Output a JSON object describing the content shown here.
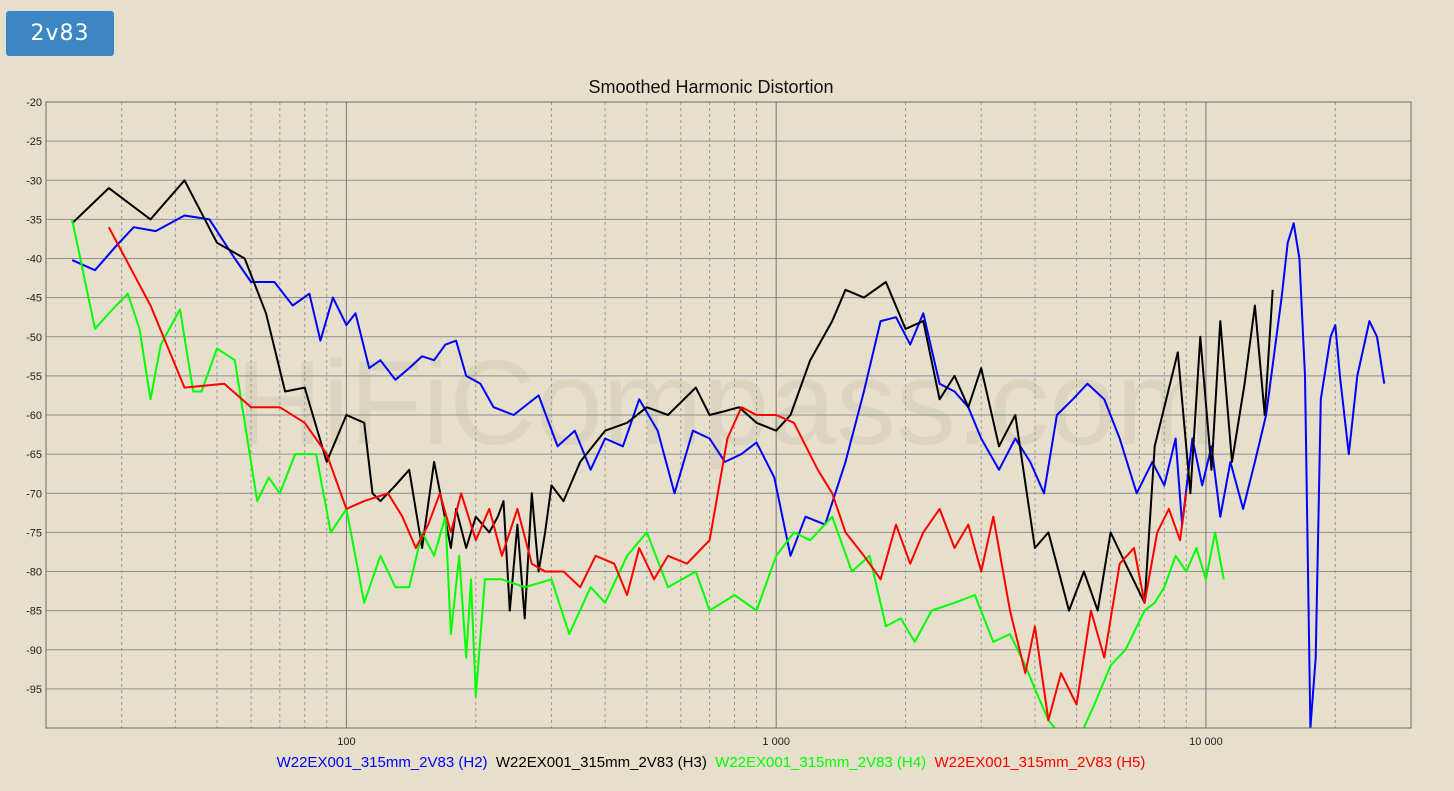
{
  "badge": {
    "label": "2v83"
  },
  "watermark": "HiFiCompass.com",
  "chart_data": {
    "type": "line",
    "title": "Smoothed Harmonic Distortion",
    "xscale": "log",
    "xlim": [
      20,
      30000
    ],
    "ylim": [
      -100,
      -20
    ],
    "grid": true,
    "legend_placement": "bottom",
    "y_ticks": [
      -20,
      -25,
      -30,
      -35,
      -40,
      -45,
      -50,
      -55,
      -60,
      -65,
      -70,
      -75,
      -80,
      -85,
      -90,
      -95
    ],
    "x_tick_labels": [
      {
        "value": 100,
        "label": "100"
      },
      {
        "value": 1000,
        "label": "1 000"
      },
      {
        "value": 10000,
        "label": "10 000"
      }
    ],
    "series": [
      {
        "name": "W22EX001_315mm_2V83 (H2)",
        "color": "#0000ff",
        "points": [
          [
            23,
            -40.2
          ],
          [
            26,
            -41.5
          ],
          [
            29,
            -38.5
          ],
          [
            32,
            -36
          ],
          [
            36,
            -36.5
          ],
          [
            42,
            -34.5
          ],
          [
            48,
            -35
          ],
          [
            55,
            -40
          ],
          [
            60,
            -43
          ],
          [
            68,
            -43
          ],
          [
            75,
            -46
          ],
          [
            82,
            -44.5
          ],
          [
            87,
            -50.5
          ],
          [
            93,
            -45
          ],
          [
            100,
            -48.5
          ],
          [
            105,
            -47
          ],
          [
            113,
            -54
          ],
          [
            120,
            -53
          ],
          [
            130,
            -55.5
          ],
          [
            140,
            -54
          ],
          [
            150,
            -52.5
          ],
          [
            160,
            -53
          ],
          [
            170,
            -51
          ],
          [
            180,
            -50.5
          ],
          [
            190,
            -55
          ],
          [
            205,
            -56
          ],
          [
            220,
            -59
          ],
          [
            245,
            -60
          ],
          [
            280,
            -57.5
          ],
          [
            310,
            -64
          ],
          [
            340,
            -62
          ],
          [
            370,
            -67
          ],
          [
            400,
            -63
          ],
          [
            440,
            -64
          ],
          [
            480,
            -58
          ],
          [
            530,
            -62
          ],
          [
            580,
            -70
          ],
          [
            640,
            -62
          ],
          [
            700,
            -63
          ],
          [
            760,
            -66
          ],
          [
            830,
            -65
          ],
          [
            900,
            -63.5
          ],
          [
            990,
            -68
          ],
          [
            1080,
            -78
          ],
          [
            1170,
            -73
          ],
          [
            1300,
            -74
          ],
          [
            1450,
            -66
          ],
          [
            1600,
            -57
          ],
          [
            1750,
            -48
          ],
          [
            1900,
            -47.5
          ],
          [
            2050,
            -51
          ],
          [
            2200,
            -47
          ],
          [
            2400,
            -56
          ],
          [
            2600,
            -57
          ],
          [
            2800,
            -59
          ],
          [
            3000,
            -63
          ],
          [
            3300,
            -67
          ],
          [
            3600,
            -63
          ],
          [
            3900,
            -66
          ],
          [
            4200,
            -70
          ],
          [
            4500,
            -60
          ],
          [
            4900,
            -58
          ],
          [
            5300,
            -56
          ],
          [
            5800,
            -58
          ],
          [
            6300,
            -63
          ],
          [
            6900,
            -70
          ],
          [
            7500,
            -66
          ],
          [
            8000,
            -69
          ],
          [
            8500,
            -63
          ],
          [
            8800,
            -74
          ],
          [
            9300,
            -63
          ],
          [
            9800,
            -69
          ],
          [
            10300,
            -64
          ],
          [
            10800,
            -73
          ],
          [
            11400,
            -66
          ],
          [
            12200,
            -72
          ],
          [
            13000,
            -66
          ],
          [
            13800,
            -60
          ],
          [
            15000,
            -45
          ],
          [
            15500,
            -38
          ],
          [
            16000,
            -35.5
          ],
          [
            16500,
            -40
          ],
          [
            17000,
            -55
          ],
          [
            17500,
            -100
          ],
          [
            18000,
            -91
          ],
          [
            18500,
            -58
          ],
          [
            19500,
            -50
          ],
          [
            20000,
            -48.5
          ],
          [
            20500,
            -55
          ],
          [
            21500,
            -65
          ],
          [
            22500,
            -55
          ],
          [
            24000,
            -48
          ],
          [
            25000,
            -50
          ],
          [
            26000,
            -56
          ]
        ]
      },
      {
        "name": "W22EX001_315mm_2V83 (H3)",
        "color": "#000000",
        "points": [
          [
            23,
            -35.5
          ],
          [
            28,
            -31
          ],
          [
            35,
            -35
          ],
          [
            42,
            -30
          ],
          [
            50,
            -38
          ],
          [
            58,
            -40
          ],
          [
            65,
            -47
          ],
          [
            72,
            -57
          ],
          [
            80,
            -56.5
          ],
          [
            90,
            -66
          ],
          [
            100,
            -60
          ],
          [
            110,
            -61
          ],
          [
            115,
            -70
          ],
          [
            120,
            -71
          ],
          [
            130,
            -69
          ],
          [
            140,
            -67
          ],
          [
            150,
            -77
          ],
          [
            160,
            -66
          ],
          [
            175,
            -77
          ],
          [
            180,
            -72
          ],
          [
            190,
            -77
          ],
          [
            200,
            -73
          ],
          [
            215,
            -75
          ],
          [
            225,
            -73
          ],
          [
            232,
            -71
          ],
          [
            240,
            -85
          ],
          [
            250,
            -74
          ],
          [
            260,
            -86
          ],
          [
            270,
            -70
          ],
          [
            280,
            -80
          ],
          [
            290,
            -75
          ],
          [
            300,
            -69
          ],
          [
            320,
            -71
          ],
          [
            350,
            -66
          ],
          [
            400,
            -62
          ],
          [
            450,
            -61
          ],
          [
            500,
            -59
          ],
          [
            560,
            -60
          ],
          [
            650,
            -56.5
          ],
          [
            700,
            -60
          ],
          [
            760,
            -59.5
          ],
          [
            820,
            -59
          ],
          [
            900,
            -61
          ],
          [
            1000,
            -62
          ],
          [
            1080,
            -60
          ],
          [
            1200,
            -53
          ],
          [
            1350,
            -48
          ],
          [
            1450,
            -44
          ],
          [
            1600,
            -45
          ],
          [
            1800,
            -43
          ],
          [
            2000,
            -49
          ],
          [
            2200,
            -48
          ],
          [
            2400,
            -58
          ],
          [
            2600,
            -55
          ],
          [
            2800,
            -59
          ],
          [
            3000,
            -54
          ],
          [
            3300,
            -64
          ],
          [
            3600,
            -60
          ],
          [
            4000,
            -77
          ],
          [
            4300,
            -75
          ],
          [
            4800,
            -85
          ],
          [
            5200,
            -80
          ],
          [
            5600,
            -85
          ],
          [
            6000,
            -75
          ],
          [
            6500,
            -79
          ],
          [
            7200,
            -84
          ],
          [
            7600,
            -64
          ],
          [
            8000,
            -59
          ],
          [
            8600,
            -52
          ],
          [
            9200,
            -70
          ],
          [
            9700,
            -50
          ],
          [
            10300,
            -67
          ],
          [
            10800,
            -48
          ],
          [
            11500,
            -66
          ],
          [
            12300,
            -56
          ],
          [
            13000,
            -46
          ],
          [
            13700,
            -60
          ],
          [
            14300,
            -44
          ]
        ]
      },
      {
        "name": "W22EX001_315mm_2V83 (H4)",
        "color": "#00ff00",
        "points": [
          [
            23,
            -35
          ],
          [
            26,
            -49
          ],
          [
            28,
            -47
          ],
          [
            31,
            -44.5
          ],
          [
            33,
            -49
          ],
          [
            35,
            -58
          ],
          [
            37,
            -51
          ],
          [
            41,
            -46.5
          ],
          [
            44,
            -57
          ],
          [
            46,
            -57
          ],
          [
            50,
            -51.5
          ],
          [
            55,
            -53
          ],
          [
            62,
            -71
          ],
          [
            66,
            -68
          ],
          [
            70,
            -70
          ],
          [
            76,
            -65
          ],
          [
            85,
            -65
          ],
          [
            92,
            -75
          ],
          [
            100,
            -72
          ],
          [
            110,
            -84
          ],
          [
            120,
            -78
          ],
          [
            130,
            -82
          ],
          [
            140,
            -82
          ],
          [
            150,
            -75
          ],
          [
            160,
            -78
          ],
          [
            170,
            -73
          ],
          [
            175,
            -88
          ],
          [
            183,
            -78
          ],
          [
            190,
            -91
          ],
          [
            195,
            -81
          ],
          [
            200,
            -96
          ],
          [
            210,
            -81
          ],
          [
            230,
            -81
          ],
          [
            260,
            -82
          ],
          [
            300,
            -81
          ],
          [
            330,
            -88
          ],
          [
            370,
            -82
          ],
          [
            400,
            -84
          ],
          [
            450,
            -78
          ],
          [
            500,
            -75
          ],
          [
            560,
            -82
          ],
          [
            650,
            -80
          ],
          [
            700,
            -85
          ],
          [
            800,
            -83
          ],
          [
            900,
            -85
          ],
          [
            1000,
            -78
          ],
          [
            1100,
            -75
          ],
          [
            1200,
            -76
          ],
          [
            1350,
            -73
          ],
          [
            1500,
            -80
          ],
          [
            1650,
            -78
          ],
          [
            1800,
            -87
          ],
          [
            1950,
            -86
          ],
          [
            2100,
            -89
          ],
          [
            2300,
            -85
          ],
          [
            2600,
            -84
          ],
          [
            2900,
            -83
          ],
          [
            3200,
            -89
          ],
          [
            3500,
            -88
          ],
          [
            3800,
            -92
          ],
          [
            4000,
            -95
          ],
          [
            4300,
            -99
          ],
          [
            4600,
            -101
          ],
          [
            5000,
            -102
          ],
          [
            5500,
            -97
          ],
          [
            6000,
            -92
          ],
          [
            6500,
            -90
          ],
          [
            7200,
            -85
          ],
          [
            7600,
            -84
          ],
          [
            8000,
            -82
          ],
          [
            8500,
            -78
          ],
          [
            9000,
            -80
          ],
          [
            9500,
            -77
          ],
          [
            10000,
            -81
          ],
          [
            10500,
            -75
          ],
          [
            11000,
            -81
          ]
        ]
      },
      {
        "name": "W22EX001_315mm_2V83 (H5)",
        "color": "#ff0000",
        "points": [
          [
            28,
            -36
          ],
          [
            35,
            -46
          ],
          [
            42,
            -56.5
          ],
          [
            52,
            -56
          ],
          [
            60,
            -59
          ],
          [
            70,
            -59
          ],
          [
            80,
            -61
          ],
          [
            90,
            -65
          ],
          [
            100,
            -72
          ],
          [
            110,
            -71
          ],
          [
            125,
            -70
          ],
          [
            135,
            -73
          ],
          [
            145,
            -77
          ],
          [
            155,
            -74
          ],
          [
            165,
            -70
          ],
          [
            175,
            -75
          ],
          [
            185,
            -70
          ],
          [
            200,
            -76
          ],
          [
            215,
            -72
          ],
          [
            230,
            -78
          ],
          [
            250,
            -72
          ],
          [
            270,
            -79
          ],
          [
            290,
            -80
          ],
          [
            320,
            -80
          ],
          [
            350,
            -82
          ],
          [
            380,
            -78
          ],
          [
            420,
            -79
          ],
          [
            450,
            -83
          ],
          [
            480,
            -77
          ],
          [
            520,
            -81
          ],
          [
            560,
            -78
          ],
          [
            620,
            -79
          ],
          [
            700,
            -76
          ],
          [
            770,
            -63
          ],
          [
            830,
            -59
          ],
          [
            900,
            -60
          ],
          [
            1000,
            -60
          ],
          [
            1100,
            -61
          ],
          [
            1250,
            -67
          ],
          [
            1350,
            -70
          ],
          [
            1450,
            -75
          ],
          [
            1600,
            -78
          ],
          [
            1750,
            -81
          ],
          [
            1900,
            -74
          ],
          [
            2050,
            -79
          ],
          [
            2200,
            -75
          ],
          [
            2400,
            -72
          ],
          [
            2600,
            -77
          ],
          [
            2800,
            -74
          ],
          [
            3000,
            -80
          ],
          [
            3200,
            -73
          ],
          [
            3500,
            -85
          ],
          [
            3800,
            -93
          ],
          [
            4000,
            -87
          ],
          [
            4300,
            -99
          ],
          [
            4600,
            -93
          ],
          [
            5000,
            -97
          ],
          [
            5400,
            -85
          ],
          [
            5800,
            -91
          ],
          [
            6300,
            -79
          ],
          [
            6800,
            -77
          ],
          [
            7200,
            -84
          ],
          [
            7700,
            -75
          ],
          [
            8200,
            -72
          ],
          [
            8700,
            -76
          ],
          [
            9000,
            -70
          ]
        ]
      }
    ]
  }
}
